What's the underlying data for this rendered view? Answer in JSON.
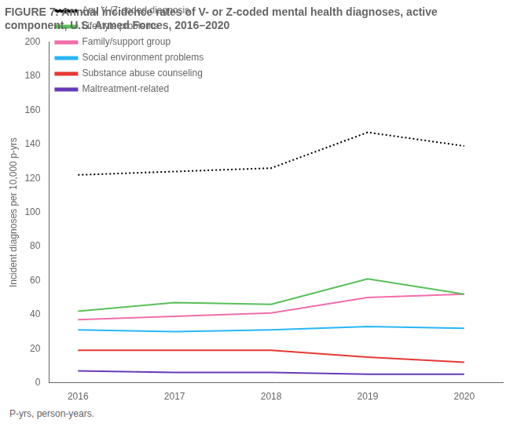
{
  "chart_data": {
    "type": "line",
    "title": "FIGURE 7. Annual incidence rates of V- or Z-coded mental health diagnoses, active component, U.S. Armed Forces, 2016–2020",
    "ylabel": "Incident diagnoses per 10,000 p-yrs",
    "annotations": [
      "P-yrs, person-years."
    ],
    "x": [
      2016,
      2017,
      2018,
      2019,
      2020
    ],
    "series": [
      {
        "name": "Any V-/Z-coded diagnosis",
        "color": "#000000",
        "line_style": "dotted",
        "values": [
          122,
          124,
          126,
          147,
          139
        ]
      },
      {
        "name": "Lifestyle problems",
        "color": "#5abf5a",
        "line_style": "solid",
        "values": [
          42,
          47,
          46,
          61,
          52
        ]
      },
      {
        "name": "Family/support group",
        "color": "#f06eaa",
        "line_style": "solid",
        "values": [
          37,
          39,
          41,
          50,
          52
        ]
      },
      {
        "name": "Social environment problems",
        "color": "#29b6f6",
        "line_style": "solid",
        "values": [
          31,
          30,
          31,
          33,
          32
        ]
      },
      {
        "name": "Substance abuse counseling",
        "color": "#e53935",
        "line_style": "solid",
        "values": [
          19,
          19,
          19,
          15,
          12
        ]
      },
      {
        "name": "Maltreatment-related",
        "color": "#673ab7",
        "line_style": "solid",
        "values": [
          7,
          6,
          6,
          5,
          5
        ]
      }
    ],
    "xlim": [
      2015.7,
      2020.4
    ],
    "xticks": [
      2016,
      2017,
      2018,
      2019,
      2020
    ],
    "ylim": [
      0,
      200
    ],
    "yticks": [
      0,
      20,
      40,
      60,
      80,
      100,
      120,
      140,
      160,
      180,
      200
    ],
    "grid": false,
    "legend": "upper left"
  }
}
